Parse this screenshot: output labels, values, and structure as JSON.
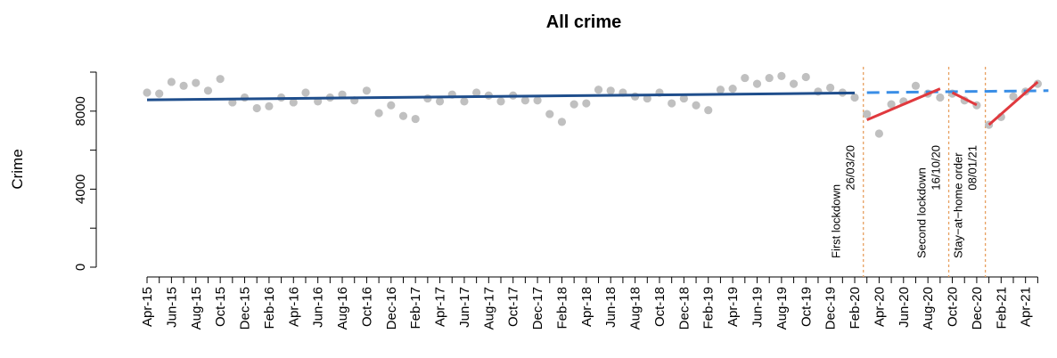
{
  "chart_data": {
    "type": "scatter",
    "title": "All crime",
    "xlabel": "",
    "ylabel": "Crime",
    "ylim": [
      0,
      10000
    ],
    "yticks": [
      0,
      4000,
      8000
    ],
    "ytick_labels": [
      "0",
      "4000",
      "8000"
    ],
    "x_labels": [
      "Apr-15",
      "Jun-15",
      "Aug-15",
      "Oct-15",
      "Dec-15",
      "Feb-16",
      "Apr-16",
      "Jun-16",
      "Aug-16",
      "Oct-16",
      "Dec-16",
      "Feb-17",
      "Apr-17",
      "Jun-17",
      "Aug-17",
      "Oct-17",
      "Dec-17",
      "Feb-18",
      "Apr-18",
      "Jun-18",
      "Aug-18",
      "Oct-18",
      "Dec-18",
      "Feb-19",
      "Apr-19",
      "Jun-19",
      "Aug-19",
      "Oct-19",
      "Dec-19",
      "Feb-20",
      "Apr-20",
      "Jun-20",
      "Aug-20",
      "Oct-20",
      "Dec-20",
      "Feb-21",
      "Apr-21"
    ],
    "months": [
      "Apr-15",
      "May-15",
      "Jun-15",
      "Jul-15",
      "Aug-15",
      "Sep-15",
      "Oct-15",
      "Nov-15",
      "Dec-15",
      "Jan-16",
      "Feb-16",
      "Mar-16",
      "Apr-16",
      "May-16",
      "Jun-16",
      "Jul-16",
      "Aug-16",
      "Sep-16",
      "Oct-16",
      "Nov-16",
      "Dec-16",
      "Jan-17",
      "Feb-17",
      "Mar-17",
      "Apr-17",
      "May-17",
      "Jun-17",
      "Jul-17",
      "Aug-17",
      "Sep-17",
      "Oct-17",
      "Nov-17",
      "Dec-17",
      "Jan-18",
      "Feb-18",
      "Mar-18",
      "Apr-18",
      "May-18",
      "Jun-18",
      "Jul-18",
      "Aug-18",
      "Sep-18",
      "Oct-18",
      "Nov-18",
      "Dec-18",
      "Jan-19",
      "Feb-19",
      "Mar-19",
      "Apr-19",
      "May-19",
      "Jun-19",
      "Jul-19",
      "Aug-19",
      "Sep-19",
      "Oct-19",
      "Nov-19",
      "Dec-19",
      "Jan-20",
      "Feb-20",
      "Mar-20",
      "Apr-20",
      "May-20",
      "Jun-20",
      "Jul-20",
      "Aug-20",
      "Sep-20",
      "Oct-20",
      "Nov-20",
      "Dec-20",
      "Jan-21",
      "Feb-21",
      "Mar-21",
      "Apr-21",
      "May-21"
    ],
    "values": [
      8950,
      8900,
      9500,
      9300,
      9450,
      9050,
      9650,
      8450,
      8700,
      8150,
      8250,
      8700,
      8450,
      8950,
      8500,
      8700,
      8850,
      8550,
      9050,
      7900,
      8300,
      7750,
      7600,
      8650,
      8500,
      8850,
      8500,
      8950,
      8800,
      8500,
      8800,
      8550,
      8550,
      7850,
      7450,
      8350,
      8400,
      9100,
      9050,
      8950,
      8750,
      8650,
      8950,
      8400,
      8650,
      8300,
      8050,
      9100,
      9150,
      9700,
      9400,
      9700,
      9800,
      9400,
      9750,
      9000,
      9200,
      8950,
      8700,
      7850,
      6850,
      8350,
      8500,
      9300,
      8900,
      8700,
      8900,
      8550,
      8300,
      7300,
      7700,
      8750,
      9000,
      9400
    ],
    "series": [
      {
        "type": "trend",
        "color": "#1f4e8c",
        "x": [
          "Apr-15",
          "Feb-20"
        ],
        "y": [
          8580,
          8930
        ]
      },
      {
        "type": "counterfactual",
        "color": "#3a8ee6",
        "style": "dashed",
        "x": [
          "Mar-20",
          "May-21"
        ],
        "y": [
          8950,
          9050
        ]
      },
      {
        "type": "segment",
        "color": "#e0393e",
        "x": [
          "Mar-20",
          "Sep-20"
        ],
        "y": [
          7550,
          9150
        ]
      },
      {
        "type": "segment",
        "color": "#e0393e",
        "x": [
          "Oct-20",
          "Dec-20"
        ],
        "y": [
          8950,
          8320
        ]
      },
      {
        "type": "segment",
        "color": "#e0393e",
        "x": [
          "Jan-21",
          "May-21"
        ],
        "y": [
          7300,
          9500
        ]
      }
    ],
    "point_color": "#c0c0c0",
    "annotations": [
      {
        "month": "Mar-20",
        "line1": "First lockdown",
        "line2": "26/03/20",
        "color": "#e8a060"
      },
      {
        "month": "Oct-20",
        "line1": "Second lockdown",
        "line2": "16/10/20",
        "color": "#e8a060"
      },
      {
        "month": "Jan-21",
        "line1": "Stay−at−home order",
        "line2": "08/01/21",
        "color": "#e8a060"
      }
    ]
  }
}
